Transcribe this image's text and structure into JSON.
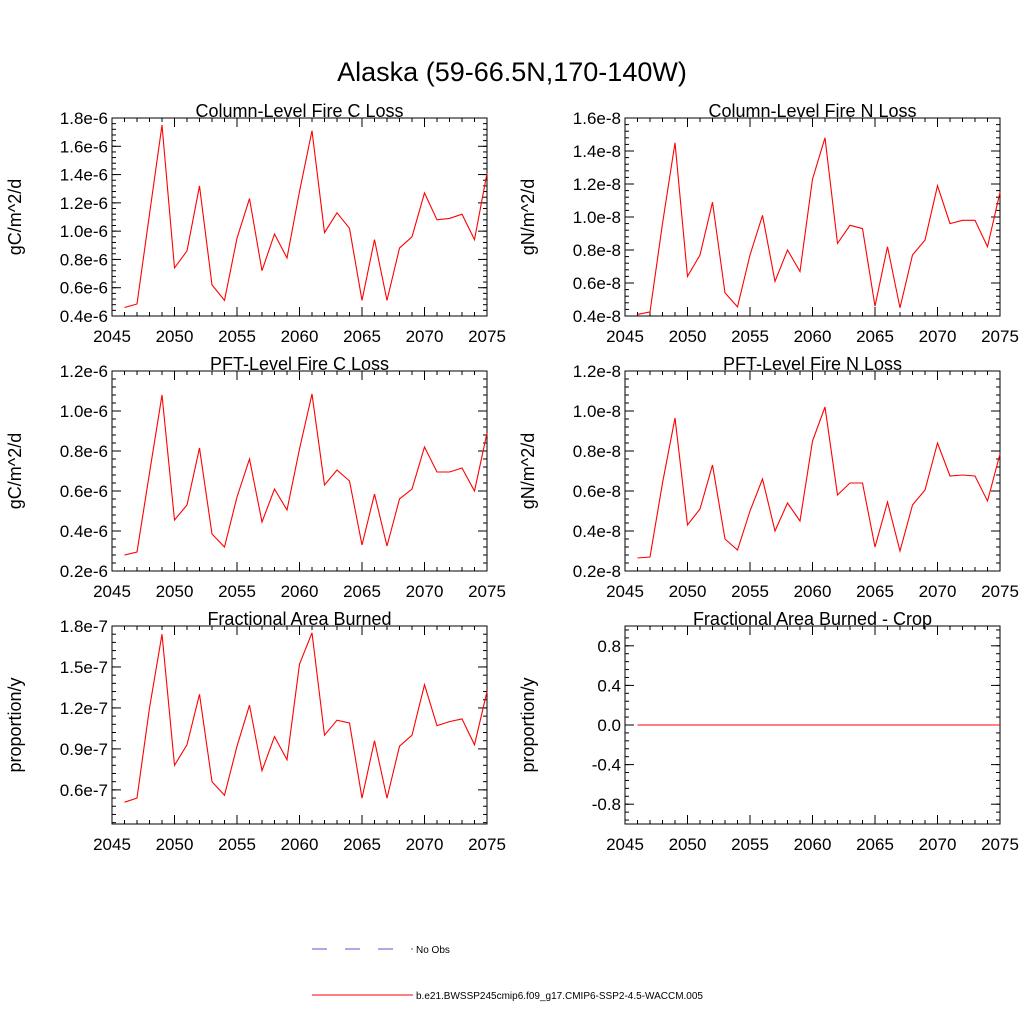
{
  "figure": {
    "title": "Alaska (59-66.5N,170-140W)"
  },
  "legend": {
    "obs_label": "No Obs",
    "model_label": "b.e21.BWSSP245cmip6.f09_g17.CMIP6-SSP2-4.5-WACCM.005",
    "obs_color": "#5555cc",
    "model_color": "#ff0000"
  },
  "colors": {
    "series": "#ff0000",
    "axis": "#000000"
  },
  "chart_data": [
    {
      "type": "line",
      "title": "Column-Level Fire C Loss",
      "ylabel": "gC/m^2/d",
      "xlim": [
        2045,
        2075
      ],
      "ylim": [
        4e-07,
        1.8e-06
      ],
      "xticks": [
        2045,
        2050,
        2055,
        2060,
        2065,
        2070,
        2075
      ],
      "yticks": [
        4e-07,
        6e-07,
        8e-07,
        1e-06,
        1.2e-06,
        1.4e-06,
        1.6e-06,
        1.8e-06
      ],
      "yticklabels": [
        "0.4e-6",
        "0.6e-6",
        "0.8e-6",
        "1.0e-6",
        "1.2e-6",
        "1.4e-6",
        "1.6e-6",
        "1.8e-6"
      ],
      "series": [
        {
          "name": "b.e21.BWSSP245cmip6.f09_g17.CMIP6-SSP2-4.5-WACCM.005",
          "x": [
            2046,
            2047,
            2048,
            2049,
            2050,
            2051,
            2052,
            2053,
            2054,
            2055,
            2056,
            2057,
            2058,
            2059,
            2060,
            2061,
            2062,
            2063,
            2064,
            2065,
            2066,
            2067,
            2068,
            2069,
            2070,
            2071,
            2072,
            2073,
            2074,
            2075
          ],
          "y": [
            4.6e-07,
            4.85e-07,
            1.12e-06,
            1.75e-06,
            7.4e-07,
            8.6e-07,
            1.32e-06,
            6.2e-07,
            5.1e-07,
            9.5e-07,
            1.23e-06,
            7.2e-07,
            9.8e-07,
            8.1e-07,
            1.28e-06,
            1.71e-06,
            9.9e-07,
            1.13e-06,
            1.02e-06,
            5.1e-07,
            9.4e-07,
            5.1e-07,
            8.8e-07,
            9.6e-07,
            1.27e-06,
            1.08e-06,
            1.09e-06,
            1.12e-06,
            9.4e-07,
            1.41e-06
          ]
        }
      ]
    },
    {
      "type": "line",
      "title": "Column-Level Fire N Loss",
      "ylabel": "gN/m^2/d",
      "xlim": [
        2045,
        2075
      ],
      "ylim": [
        4e-09,
        1.6e-08
      ],
      "xticks": [
        2045,
        2050,
        2055,
        2060,
        2065,
        2070,
        2075
      ],
      "yticks": [
        4e-09,
        6e-09,
        8e-09,
        1e-08,
        1.2e-08,
        1.4e-08,
        1.6e-08
      ],
      "yticklabels": [
        "0.4e-8",
        "0.6e-8",
        "0.8e-8",
        "1.0e-8",
        "1.2e-8",
        "1.4e-8",
        "1.6e-8"
      ],
      "series": [
        {
          "name": "b.e21.BWSSP245cmip6.f09_g17.CMIP6-SSP2-4.5-WACCM.005",
          "x": [
            2046,
            2047,
            2048,
            2049,
            2050,
            2051,
            2052,
            2053,
            2054,
            2055,
            2056,
            2057,
            2058,
            2059,
            2060,
            2061,
            2062,
            2063,
            2064,
            2065,
            2066,
            2067,
            2068,
            2069,
            2070,
            2071,
            2072,
            2073,
            2074,
            2075
          ],
          "y": [
            4.1e-09,
            4.25e-09,
            9.6e-09,
            1.45e-08,
            6.4e-09,
            7.7e-09,
            1.09e-08,
            5.4e-09,
            4.55e-09,
            7.7e-09,
            1.01e-08,
            6.1e-09,
            8e-09,
            6.7e-09,
            1.23e-08,
            1.48e-08,
            8.4e-09,
            9.5e-09,
            9.3e-09,
            4.6e-09,
            8.2e-09,
            4.5e-09,
            7.7e-09,
            8.6e-09,
            1.19e-08,
            9.6e-09,
            9.8e-09,
            9.8e-09,
            8.2e-09,
            1.15e-08
          ]
        }
      ]
    },
    {
      "type": "line",
      "title": "PFT-Level Fire C Loss",
      "ylabel": "gC/m^2/d",
      "xlim": [
        2045,
        2075
      ],
      "ylim": [
        2e-07,
        1.2e-06
      ],
      "xticks": [
        2045,
        2050,
        2055,
        2060,
        2065,
        2070,
        2075
      ],
      "yticks": [
        2e-07,
        4e-07,
        6e-07,
        8e-07,
        1e-06,
        1.2e-06
      ],
      "yticklabels": [
        "0.2e-6",
        "0.4e-6",
        "0.6e-6",
        "0.8e-6",
        "1.0e-6",
        "1.2e-6"
      ],
      "series": [
        {
          "name": "b.e21.BWSSP245cmip6.f09_g17.CMIP6-SSP2-4.5-WACCM.005",
          "x": [
            2046,
            2047,
            2048,
            2049,
            2050,
            2051,
            2052,
            2053,
            2054,
            2055,
            2056,
            2057,
            2058,
            2059,
            2060,
            2061,
            2062,
            2063,
            2064,
            2065,
            2066,
            2067,
            2068,
            2069,
            2070,
            2071,
            2072,
            2073,
            2074,
            2075
          ],
          "y": [
            2.8e-07,
            2.95e-07,
            6.9e-07,
            1.08e-06,
            4.55e-07,
            5.3e-07,
            8.15e-07,
            3.85e-07,
            3.2e-07,
            5.7e-07,
            7.6e-07,
            4.45e-07,
            6.1e-07,
            5.05e-07,
            8.1e-07,
            1.085e-06,
            6.3e-07,
            7.05e-07,
            6.5e-07,
            3.3e-07,
            5.85e-07,
            3.25e-07,
            5.6e-07,
            6.1e-07,
            8.2e-07,
            6.95e-07,
            6.95e-07,
            7.15e-07,
            6e-07,
            8.9e-07
          ]
        }
      ]
    },
    {
      "type": "line",
      "title": "PFT-Level Fire N Loss",
      "ylabel": "gN/m^2/d",
      "xlim": [
        2045,
        2075
      ],
      "ylim": [
        2e-09,
        1.2e-08
      ],
      "xticks": [
        2045,
        2050,
        2055,
        2060,
        2065,
        2070,
        2075
      ],
      "yticks": [
        2e-09,
        4e-09,
        6e-09,
        8e-09,
        1e-08,
        1.2e-08
      ],
      "yticklabels": [
        "0.2e-8",
        "0.4e-8",
        "0.6e-8",
        "0.8e-8",
        "1.0e-8",
        "1.2e-8"
      ],
      "series": [
        {
          "name": "b.e21.BWSSP245cmip6.f09_g17.CMIP6-SSP2-4.5-WACCM.005",
          "x": [
            2046,
            2047,
            2048,
            2049,
            2050,
            2051,
            2052,
            2053,
            2054,
            2055,
            2056,
            2057,
            2058,
            2059,
            2060,
            2061,
            2062,
            2063,
            2064,
            2065,
            2066,
            2067,
            2068,
            2069,
            2070,
            2071,
            2072,
            2073,
            2074,
            2075
          ],
          "y": [
            2.65e-09,
            2.7e-09,
            6.4e-09,
            9.65e-09,
            4.3e-09,
            5.1e-09,
            7.3e-09,
            3.6e-09,
            3.05e-09,
            5e-09,
            6.6e-09,
            4e-09,
            5.4e-09,
            4.5e-09,
            8.5e-09,
            1.02e-08,
            5.8e-09,
            6.4e-09,
            6.4e-09,
            3.2e-09,
            5.45e-09,
            3e-09,
            5.3e-09,
            6.05e-09,
            8.4e-09,
            6.75e-09,
            6.8e-09,
            6.75e-09,
            5.5e-09,
            7.85e-09
          ]
        }
      ]
    },
    {
      "type": "line",
      "title": "Fractional Area Burned",
      "ylabel": "proportion/y",
      "xlim": [
        2045,
        2075
      ],
      "ylim": [
        3.5e-08,
        1.8e-07
      ],
      "xticks": [
        2045,
        2050,
        2055,
        2060,
        2065,
        2070,
        2075
      ],
      "yticks": [
        6e-08,
        9e-08,
        1.2e-07,
        1.5e-07,
        1.8e-07
      ],
      "yticklabels": [
        "0.6e-7",
        "0.9e-7",
        "1.2e-7",
        "1.5e-7",
        "1.8e-7"
      ],
      "series": [
        {
          "name": "b.e21.BWSSP245cmip6.f09_g17.CMIP6-SSP2-4.5-WACCM.005",
          "x": [
            2046,
            2047,
            2048,
            2049,
            2050,
            2051,
            2052,
            2053,
            2054,
            2055,
            2056,
            2057,
            2058,
            2059,
            2060,
            2061,
            2062,
            2063,
            2064,
            2065,
            2066,
            2067,
            2068,
            2069,
            2070,
            2071,
            2072,
            2073,
            2074,
            2075
          ],
          "y": [
            5.1e-08,
            5.4e-08,
            1.2e-07,
            1.74e-07,
            7.8e-08,
            9.3e-08,
            1.3e-07,
            6.6e-08,
            5.6e-08,
            9.2e-08,
            1.22e-07,
            7.4e-08,
            9.9e-08,
            8.2e-08,
            1.52e-07,
            1.75e-07,
            1e-07,
            1.11e-07,
            1.09e-07,
            5.4e-08,
            9.6e-08,
            5.4e-08,
            9.2e-08,
            1e-07,
            1.37e-07,
            1.07e-07,
            1.1e-07,
            1.12e-07,
            9.3e-08,
            1.32e-07
          ]
        }
      ]
    },
    {
      "type": "line",
      "title": "Fractional Area Burned - Crop",
      "ylabel": "proportion/y",
      "xlim": [
        2045,
        2075
      ],
      "ylim": [
        -1.0,
        1.0
      ],
      "xticks": [
        2045,
        2050,
        2055,
        2060,
        2065,
        2070,
        2075
      ],
      "yticks": [
        -0.8,
        -0.4,
        0.0,
        0.4,
        0.8
      ],
      "yticklabels": [
        "-0.8",
        "-0.4",
        "0.0",
        "0.4",
        "0.8"
      ],
      "series": [
        {
          "name": "b.e21.BWSSP245cmip6.f09_g17.CMIP6-SSP2-4.5-WACCM.005",
          "x": [
            2046,
            2047,
            2048,
            2049,
            2050,
            2051,
            2052,
            2053,
            2054,
            2055,
            2056,
            2057,
            2058,
            2059,
            2060,
            2061,
            2062,
            2063,
            2064,
            2065,
            2066,
            2067,
            2068,
            2069,
            2070,
            2071,
            2072,
            2073,
            2074,
            2075
          ],
          "y": [
            0,
            0,
            0,
            0,
            0,
            0,
            0,
            0,
            0,
            0,
            0,
            0,
            0,
            0,
            0,
            0,
            0,
            0,
            0,
            0,
            0,
            0,
            0,
            0,
            0,
            0,
            0,
            0,
            0,
            0
          ]
        }
      ]
    }
  ]
}
